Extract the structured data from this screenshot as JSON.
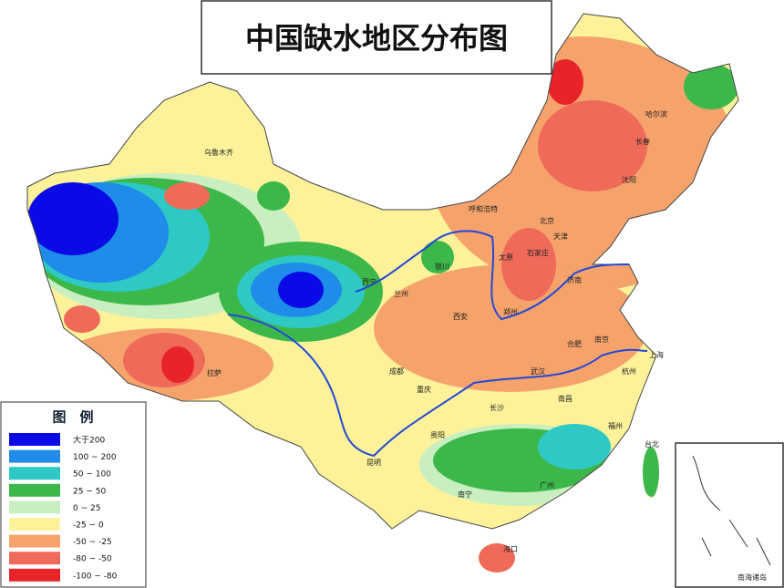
{
  "title": "中国缺水地区分布图",
  "legend": {
    "title": "图　例",
    "items": [
      {
        "label": "大于200",
        "color": "#0a0ae6"
      },
      {
        "label": "100 ~ 200",
        "color": "#1e8ce8"
      },
      {
        "label": "50 ~ 100",
        "color": "#2ec9c4"
      },
      {
        "label": "25 ~ 50",
        "color": "#3cb84a"
      },
      {
        "label": "0 ~ 25",
        "color": "#c9efc0"
      },
      {
        "label": "-25 ~ 0",
        "color": "#fdf29a"
      },
      {
        "label": "-50 ~ -25",
        "color": "#f5a36a"
      },
      {
        "label": "-80 ~ -50",
        "color": "#f06a5a"
      },
      {
        "label": "-100 ~ -80",
        "color": "#e8242a"
      }
    ]
  },
  "cities": [
    "乌鲁木齐",
    "哈尔滨",
    "长春",
    "沈阳",
    "北京",
    "天津",
    "呼和浩特",
    "太原",
    "石家庄",
    "济南",
    "西宁",
    "兰州",
    "银川",
    "西安",
    "郑州",
    "合肥",
    "南京",
    "上海",
    "武汉",
    "成都",
    "重庆",
    "长沙",
    "南昌",
    "福州",
    "贵阳",
    "昆明",
    "南宁",
    "广州",
    "海口",
    "拉萨",
    "台北",
    "杭州"
  ],
  "inset_label": "南海诸岛"
}
